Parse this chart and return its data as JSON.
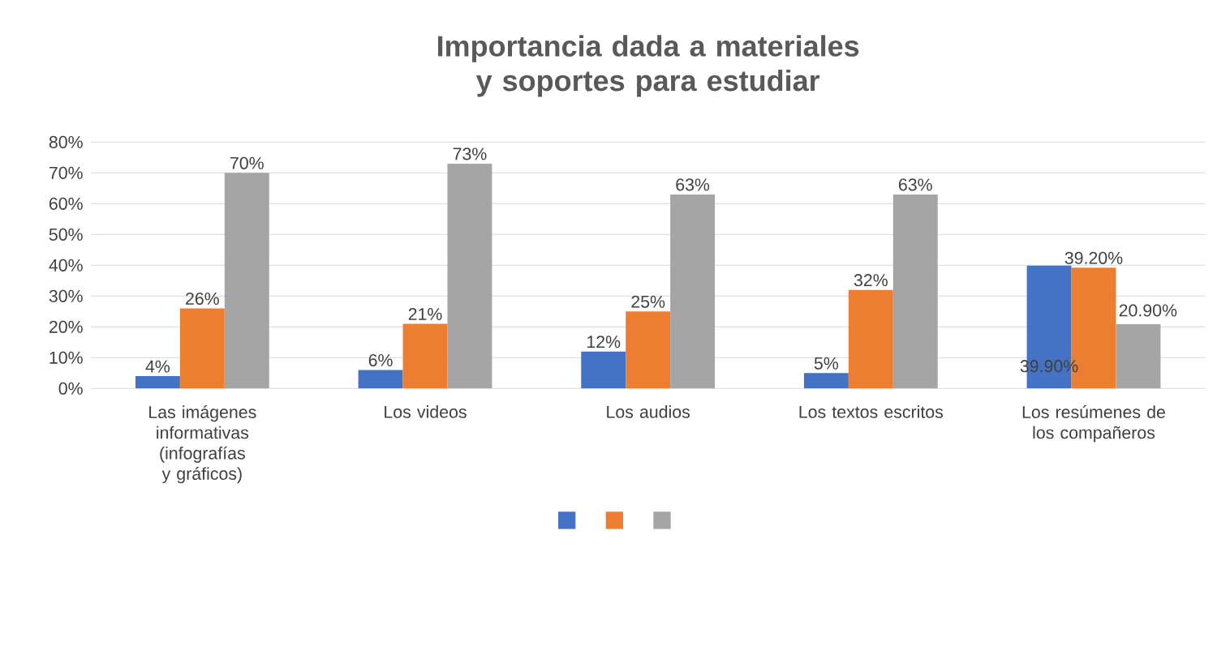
{
  "chart_data": {
    "type": "bar",
    "title": "Importancia dada a materiales y soportes para estudiar",
    "categories": [
      "Las imágenes informativas (infografías y gráficos)",
      "Los videos",
      "Los audios",
      "Los textos escritos",
      "Los resúmenes de los compañeros"
    ],
    "series": [
      {
        "color": "#4472c4",
        "values": [
          4,
          6,
          12,
          5,
          39.9
        ],
        "value_labels": [
          "4%",
          "6%",
          "12%",
          "5%",
          "39.90%"
        ]
      },
      {
        "color": "#ed7d31",
        "values": [
          26,
          21,
          25,
          32,
          39.2
        ],
        "value_labels": [
          "26%",
          "21%",
          "25%",
          "32%",
          "39.20%"
        ]
      },
      {
        "color": "#a5a5a5",
        "values": [
          70,
          73,
          63,
          63,
          20.9
        ],
        "value_labels": [
          "70%",
          "73%",
          "63%",
          "63%",
          "20.90%"
        ]
      }
    ],
    "ylim": [
      0,
      80
    ],
    "yticks": [
      {
        "value": 0,
        "label": "0%"
      },
      {
        "value": 10,
        "label": "10%"
      },
      {
        "value": 20,
        "label": "20%"
      },
      {
        "value": 30,
        "label": "30%"
      },
      {
        "value": 40,
        "label": "40%"
      },
      {
        "value": 50,
        "label": "50%"
      },
      {
        "value": 60,
        "label": "60%"
      },
      {
        "value": 70,
        "label": "70%"
      },
      {
        "value": 80,
        "label": "80%"
      }
    ],
    "grid": "y"
  }
}
